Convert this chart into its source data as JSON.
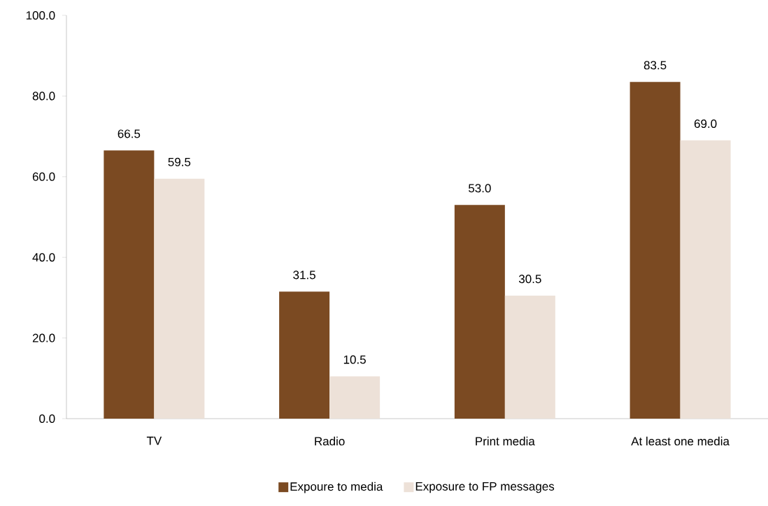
{
  "chart_data": {
    "type": "bar",
    "categories": [
      "TV",
      "Radio",
      "Print media",
      "At least one media"
    ],
    "series": [
      {
        "name": "Expoure to media",
        "color": "#7b4a22",
        "values": [
          66.5,
          31.5,
          53.0,
          83.5
        ],
        "value_labels": [
          "66.5",
          "31.5",
          "53.0",
          "83.5"
        ]
      },
      {
        "name": "Exposure to FP messages",
        "color": "#ede1d8",
        "values": [
          59.5,
          10.5,
          30.5,
          69.0
        ],
        "value_labels": [
          "59.5",
          "10.5",
          "30.5",
          "69.0"
        ]
      }
    ],
    "ylim": [
      0,
      100
    ],
    "yticks": [
      {
        "value": 0,
        "label": "0.0"
      },
      {
        "value": 20,
        "label": "20.0"
      },
      {
        "value": 40,
        "label": "40.0"
      },
      {
        "value": 60,
        "label": "60.0"
      },
      {
        "value": 80,
        "label": "80.0"
      },
      {
        "value": 100,
        "label": "100.0"
      }
    ],
    "grid": false,
    "legend": "bottom"
  }
}
